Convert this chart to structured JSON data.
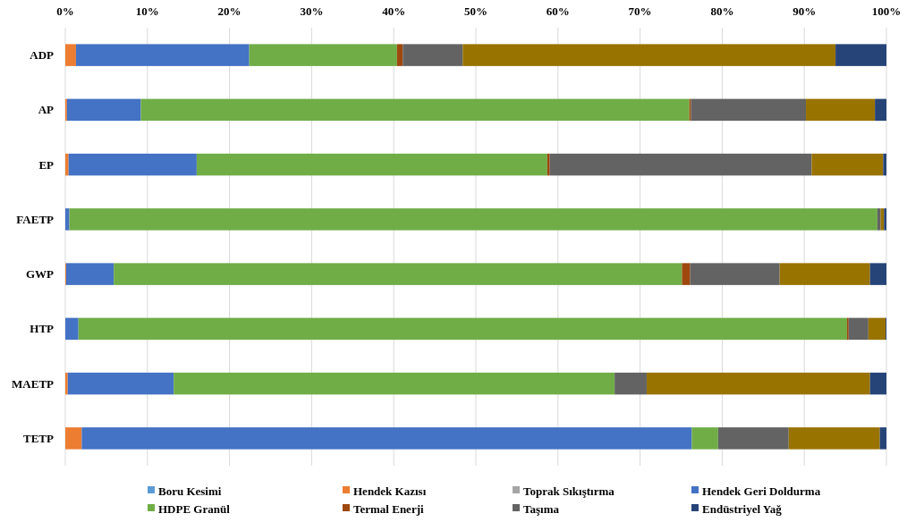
{
  "chart_data": {
    "type": "bar",
    "orientation": "horizontal",
    "stacked": true,
    "categories": [
      "ADP",
      "AP",
      "EP",
      "FAETP",
      "GWP",
      "HTP",
      "MAETP",
      "TETP"
    ],
    "xlim": [
      0,
      100
    ],
    "xticks": [
      {
        "value": 0,
        "label": "0%"
      },
      {
        "value": 10,
        "label": "10%"
      },
      {
        "value": 20,
        "label": "20%"
      },
      {
        "value": 30,
        "label": "30%"
      },
      {
        "value": 40,
        "label": "40%"
      },
      {
        "value": 50,
        "label": "50%"
      },
      {
        "value": 60,
        "label": "60%"
      },
      {
        "value": 70,
        "label": "70%"
      },
      {
        "value": 80,
        "label": "80%"
      },
      {
        "value": 90,
        "label": "90%"
      },
      {
        "value": 100,
        "label": "100%"
      }
    ],
    "grid": "x",
    "legend": "bottom",
    "series": [
      {
        "name": "Boru Kesimi",
        "color": "#5b9bd5",
        "values": [
          0,
          0,
          0,
          0,
          0,
          0,
          0,
          0
        ]
      },
      {
        "name": "Hendek Kazısı",
        "color": "#ed7d31",
        "values": [
          1.3,
          0.2,
          0.4,
          0,
          0.1,
          0,
          0.3,
          2.0
        ]
      },
      {
        "name": "Toprak Sıkıştırma",
        "color": "#a5a5a5",
        "values": [
          0,
          0,
          0,
          0,
          0,
          0,
          0,
          0
        ]
      },
      {
        "name": "Hendek Geri Doldurma",
        "color": "#4472c4",
        "values": [
          21.1,
          9.0,
          15.6,
          0.5,
          5.8,
          1.6,
          12.9,
          74.3
        ]
      },
      {
        "name": "HDPE Granül",
        "color": "#70ad47",
        "values": [
          18.0,
          66.8,
          42.7,
          98.4,
          69.2,
          93.6,
          53.7,
          3.2
        ]
      },
      {
        "name": "Termal Enerji",
        "color": "#9e480e",
        "values": [
          0.7,
          0.2,
          0.3,
          0,
          1.0,
          0.2,
          0,
          0
        ]
      },
      {
        "name": "Taşıma",
        "color": "#636363",
        "values": [
          7.3,
          14.0,
          31.9,
          0.4,
          10.9,
          2.4,
          3.9,
          8.6
        ]
      },
      {
        "color": "#997300",
        "values": [
          45.4,
          8.4,
          8.7,
          0.4,
          11.0,
          2.1,
          27.2,
          11.1
        ]
      },
      {
        "name": "Endüstriyel Yağ",
        "color": "#264478",
        "values": [
          6.2,
          1.4,
          0.4,
          0.3,
          2.0,
          0.1,
          2.0,
          0.8
        ]
      }
    ]
  }
}
